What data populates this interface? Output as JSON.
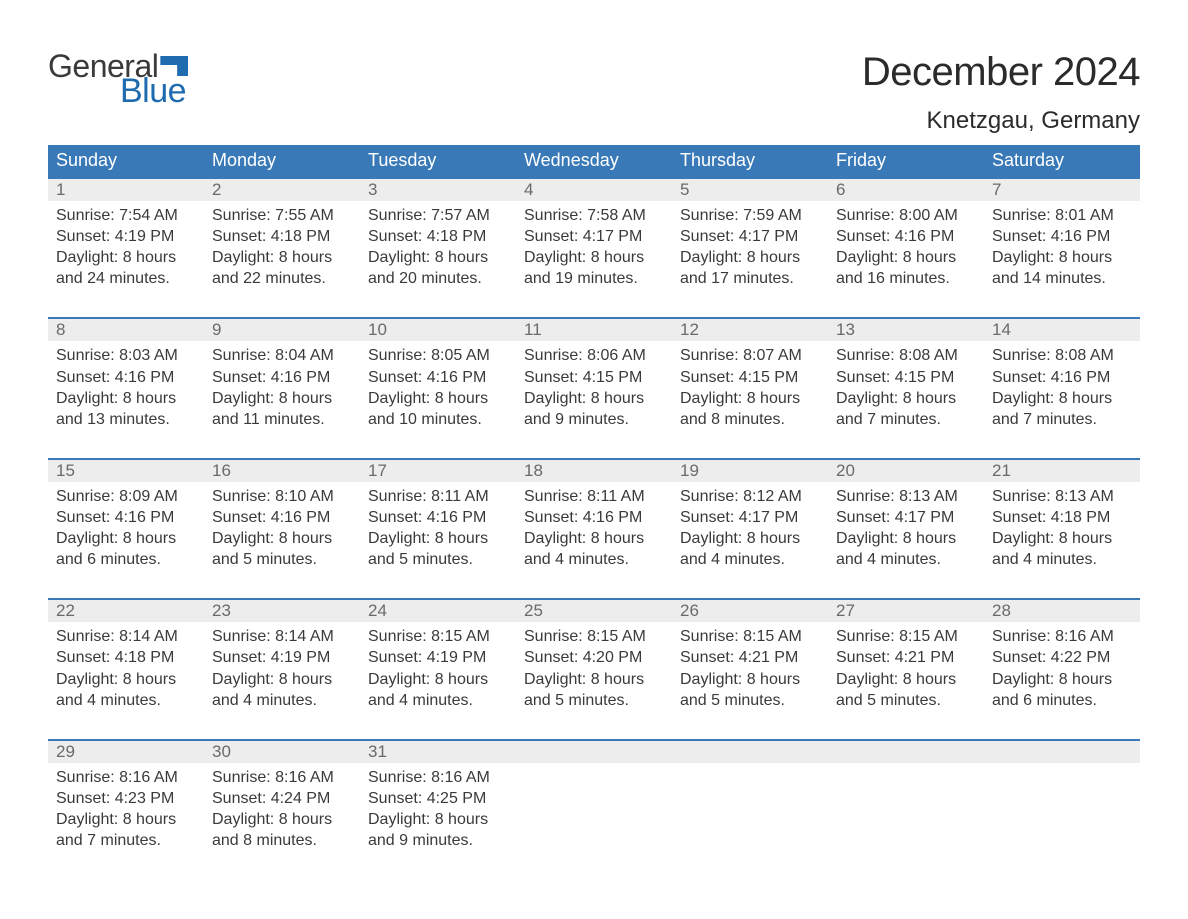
{
  "brand": {
    "general": "General",
    "blue": "Blue"
  },
  "title": "December 2024",
  "subtitle": "Knetzgau, Germany",
  "colors": {
    "header_bg": "#3a79b7",
    "header_text": "#ffffff",
    "week_border": "#3a79b7",
    "daynum_bg": "#ededed",
    "daynum_text": "#6a6a6a",
    "body_text": "#3a3a3a",
    "brand_blue": "#1f6bb0",
    "brand_dark": "#3a3a3a",
    "page_bg": "#ffffff"
  },
  "day_names": [
    "Sunday",
    "Monday",
    "Tuesday",
    "Wednesday",
    "Thursday",
    "Friday",
    "Saturday"
  ],
  "weeks": [
    [
      {
        "n": "1",
        "sunrise": "Sunrise: 7:54 AM",
        "sunset": "Sunset: 4:19 PM",
        "dl1": "Daylight: 8 hours",
        "dl2": "and 24 minutes."
      },
      {
        "n": "2",
        "sunrise": "Sunrise: 7:55 AM",
        "sunset": "Sunset: 4:18 PM",
        "dl1": "Daylight: 8 hours",
        "dl2": "and 22 minutes."
      },
      {
        "n": "3",
        "sunrise": "Sunrise: 7:57 AM",
        "sunset": "Sunset: 4:18 PM",
        "dl1": "Daylight: 8 hours",
        "dl2": "and 20 minutes."
      },
      {
        "n": "4",
        "sunrise": "Sunrise: 7:58 AM",
        "sunset": "Sunset: 4:17 PM",
        "dl1": "Daylight: 8 hours",
        "dl2": "and 19 minutes."
      },
      {
        "n": "5",
        "sunrise": "Sunrise: 7:59 AM",
        "sunset": "Sunset: 4:17 PM",
        "dl1": "Daylight: 8 hours",
        "dl2": "and 17 minutes."
      },
      {
        "n": "6",
        "sunrise": "Sunrise: 8:00 AM",
        "sunset": "Sunset: 4:16 PM",
        "dl1": "Daylight: 8 hours",
        "dl2": "and 16 minutes."
      },
      {
        "n": "7",
        "sunrise": "Sunrise: 8:01 AM",
        "sunset": "Sunset: 4:16 PM",
        "dl1": "Daylight: 8 hours",
        "dl2": "and 14 minutes."
      }
    ],
    [
      {
        "n": "8",
        "sunrise": "Sunrise: 8:03 AM",
        "sunset": "Sunset: 4:16 PM",
        "dl1": "Daylight: 8 hours",
        "dl2": "and 13 minutes."
      },
      {
        "n": "9",
        "sunrise": "Sunrise: 8:04 AM",
        "sunset": "Sunset: 4:16 PM",
        "dl1": "Daylight: 8 hours",
        "dl2": "and 11 minutes."
      },
      {
        "n": "10",
        "sunrise": "Sunrise: 8:05 AM",
        "sunset": "Sunset: 4:16 PM",
        "dl1": "Daylight: 8 hours",
        "dl2": "and 10 minutes."
      },
      {
        "n": "11",
        "sunrise": "Sunrise: 8:06 AM",
        "sunset": "Sunset: 4:15 PM",
        "dl1": "Daylight: 8 hours",
        "dl2": "and 9 minutes."
      },
      {
        "n": "12",
        "sunrise": "Sunrise: 8:07 AM",
        "sunset": "Sunset: 4:15 PM",
        "dl1": "Daylight: 8 hours",
        "dl2": "and 8 minutes."
      },
      {
        "n": "13",
        "sunrise": "Sunrise: 8:08 AM",
        "sunset": "Sunset: 4:15 PM",
        "dl1": "Daylight: 8 hours",
        "dl2": "and 7 minutes."
      },
      {
        "n": "14",
        "sunrise": "Sunrise: 8:08 AM",
        "sunset": "Sunset: 4:16 PM",
        "dl1": "Daylight: 8 hours",
        "dl2": "and 7 minutes."
      }
    ],
    [
      {
        "n": "15",
        "sunrise": "Sunrise: 8:09 AM",
        "sunset": "Sunset: 4:16 PM",
        "dl1": "Daylight: 8 hours",
        "dl2": "and 6 minutes."
      },
      {
        "n": "16",
        "sunrise": "Sunrise: 8:10 AM",
        "sunset": "Sunset: 4:16 PM",
        "dl1": "Daylight: 8 hours",
        "dl2": "and 5 minutes."
      },
      {
        "n": "17",
        "sunrise": "Sunrise: 8:11 AM",
        "sunset": "Sunset: 4:16 PM",
        "dl1": "Daylight: 8 hours",
        "dl2": "and 5 minutes."
      },
      {
        "n": "18",
        "sunrise": "Sunrise: 8:11 AM",
        "sunset": "Sunset: 4:16 PM",
        "dl1": "Daylight: 8 hours",
        "dl2": "and 4 minutes."
      },
      {
        "n": "19",
        "sunrise": "Sunrise: 8:12 AM",
        "sunset": "Sunset: 4:17 PM",
        "dl1": "Daylight: 8 hours",
        "dl2": "and 4 minutes."
      },
      {
        "n": "20",
        "sunrise": "Sunrise: 8:13 AM",
        "sunset": "Sunset: 4:17 PM",
        "dl1": "Daylight: 8 hours",
        "dl2": "and 4 minutes."
      },
      {
        "n": "21",
        "sunrise": "Sunrise: 8:13 AM",
        "sunset": "Sunset: 4:18 PM",
        "dl1": "Daylight: 8 hours",
        "dl2": "and 4 minutes."
      }
    ],
    [
      {
        "n": "22",
        "sunrise": "Sunrise: 8:14 AM",
        "sunset": "Sunset: 4:18 PM",
        "dl1": "Daylight: 8 hours",
        "dl2": "and 4 minutes."
      },
      {
        "n": "23",
        "sunrise": "Sunrise: 8:14 AM",
        "sunset": "Sunset: 4:19 PM",
        "dl1": "Daylight: 8 hours",
        "dl2": "and 4 minutes."
      },
      {
        "n": "24",
        "sunrise": "Sunrise: 8:15 AM",
        "sunset": "Sunset: 4:19 PM",
        "dl1": "Daylight: 8 hours",
        "dl2": "and 4 minutes."
      },
      {
        "n": "25",
        "sunrise": "Sunrise: 8:15 AM",
        "sunset": "Sunset: 4:20 PM",
        "dl1": "Daylight: 8 hours",
        "dl2": "and 5 minutes."
      },
      {
        "n": "26",
        "sunrise": "Sunrise: 8:15 AM",
        "sunset": "Sunset: 4:21 PM",
        "dl1": "Daylight: 8 hours",
        "dl2": "and 5 minutes."
      },
      {
        "n": "27",
        "sunrise": "Sunrise: 8:15 AM",
        "sunset": "Sunset: 4:21 PM",
        "dl1": "Daylight: 8 hours",
        "dl2": "and 5 minutes."
      },
      {
        "n": "28",
        "sunrise": "Sunrise: 8:16 AM",
        "sunset": "Sunset: 4:22 PM",
        "dl1": "Daylight: 8 hours",
        "dl2": "and 6 minutes."
      }
    ],
    [
      {
        "n": "29",
        "sunrise": "Sunrise: 8:16 AM",
        "sunset": "Sunset: 4:23 PM",
        "dl1": "Daylight: 8 hours",
        "dl2": "and 7 minutes."
      },
      {
        "n": "30",
        "sunrise": "Sunrise: 8:16 AM",
        "sunset": "Sunset: 4:24 PM",
        "dl1": "Daylight: 8 hours",
        "dl2": "and 8 minutes."
      },
      {
        "n": "31",
        "sunrise": "Sunrise: 8:16 AM",
        "sunset": "Sunset: 4:25 PM",
        "dl1": "Daylight: 8 hours",
        "dl2": "and 9 minutes."
      },
      {
        "n": "",
        "sunrise": "",
        "sunset": "",
        "dl1": "",
        "dl2": ""
      },
      {
        "n": "",
        "sunrise": "",
        "sunset": "",
        "dl1": "",
        "dl2": ""
      },
      {
        "n": "",
        "sunrise": "",
        "sunset": "",
        "dl1": "",
        "dl2": ""
      },
      {
        "n": "",
        "sunrise": "",
        "sunset": "",
        "dl1": "",
        "dl2": ""
      }
    ]
  ]
}
